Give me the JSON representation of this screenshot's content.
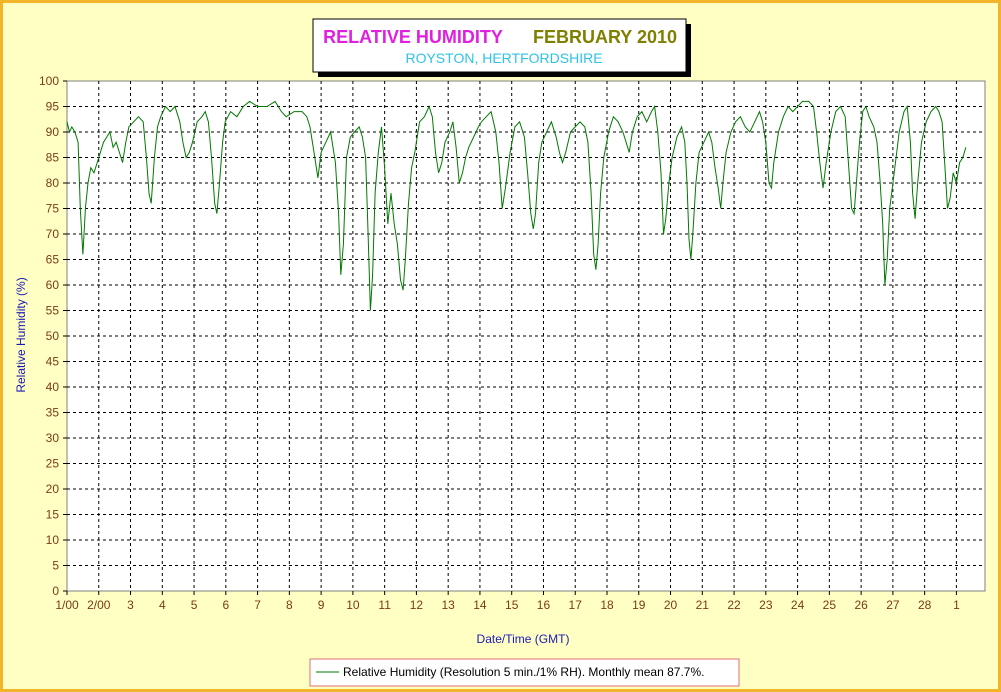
{
  "chart_data": {
    "type": "line",
    "title": "RELATIVE HUMIDITY",
    "title_month": "FEBRUARY 2010",
    "subtitle": "ROYSTON, HERTFORDSHIRE",
    "xlabel": "Date/Time (GMT)",
    "ylabel": "Relative Humidity (%)",
    "ylim": [
      0,
      100
    ],
    "xlim": [
      1,
      29.9
    ],
    "y_ticks": [
      0,
      5,
      10,
      15,
      20,
      25,
      30,
      35,
      40,
      45,
      50,
      55,
      60,
      65,
      70,
      75,
      80,
      85,
      90,
      95,
      100
    ],
    "x_ticks": [
      {
        "x": 1,
        "label": "1/00"
      },
      {
        "x": 2,
        "label": "2/00"
      },
      {
        "x": 3,
        "label": "3"
      },
      {
        "x": 4,
        "label": "4"
      },
      {
        "x": 5,
        "label": "5"
      },
      {
        "x": 6,
        "label": "6"
      },
      {
        "x": 7,
        "label": "7"
      },
      {
        "x": 8,
        "label": "8"
      },
      {
        "x": 9,
        "label": "9"
      },
      {
        "x": 10,
        "label": "10"
      },
      {
        "x": 11,
        "label": "11"
      },
      {
        "x": 12,
        "label": "12"
      },
      {
        "x": 13,
        "label": "13"
      },
      {
        "x": 14,
        "label": "14"
      },
      {
        "x": 15,
        "label": "15"
      },
      {
        "x": 16,
        "label": "16"
      },
      {
        "x": 17,
        "label": "17"
      },
      {
        "x": 18,
        "label": "18"
      },
      {
        "x": 19,
        "label": "19"
      },
      {
        "x": 20,
        "label": "20"
      },
      {
        "x": 21,
        "label": "21"
      },
      {
        "x": 22,
        "label": "22"
      },
      {
        "x": 23,
        "label": "23"
      },
      {
        "x": 24,
        "label": "24"
      },
      {
        "x": 25,
        "label": "25"
      },
      {
        "x": 26,
        "label": "26"
      },
      {
        "x": 27,
        "label": "27"
      },
      {
        "x": 28,
        "label": "28"
      },
      {
        "x": 29,
        "label": "1"
      }
    ],
    "grid": true,
    "legend_position": "bottom-center",
    "series": [
      {
        "name": "Relative Humidity (Resolution 5 min./1% RH). Monthly mean 87.7%.",
        "color": "#007a00",
        "points": [
          [
            1.0,
            92
          ],
          [
            1.08,
            90
          ],
          [
            1.15,
            91
          ],
          [
            1.25,
            90
          ],
          [
            1.35,
            88
          ],
          [
            1.42,
            75
          ],
          [
            1.5,
            66
          ],
          [
            1.58,
            75
          ],
          [
            1.66,
            80
          ],
          [
            1.75,
            83
          ],
          [
            1.85,
            82
          ],
          [
            1.95,
            84
          ],
          [
            2.05,
            86
          ],
          [
            2.15,
            88
          ],
          [
            2.25,
            89
          ],
          [
            2.35,
            90
          ],
          [
            2.45,
            87
          ],
          [
            2.55,
            88
          ],
          [
            2.65,
            86
          ],
          [
            2.75,
            84
          ],
          [
            2.85,
            88
          ],
          [
            2.95,
            91
          ],
          [
            3.1,
            92
          ],
          [
            3.25,
            93
          ],
          [
            3.4,
            92
          ],
          [
            3.5,
            85
          ],
          [
            3.58,
            78
          ],
          [
            3.65,
            76
          ],
          [
            3.75,
            85
          ],
          [
            3.85,
            91
          ],
          [
            3.95,
            93
          ],
          [
            4.1,
            95
          ],
          [
            4.25,
            94
          ],
          [
            4.4,
            95
          ],
          [
            4.55,
            92
          ],
          [
            4.65,
            88
          ],
          [
            4.75,
            85
          ],
          [
            4.85,
            86
          ],
          [
            4.95,
            88
          ],
          [
            5.1,
            92
          ],
          [
            5.25,
            93
          ],
          [
            5.35,
            94
          ],
          [
            5.45,
            92
          ],
          [
            5.55,
            85
          ],
          [
            5.65,
            76
          ],
          [
            5.72,
            74
          ],
          [
            5.8,
            80
          ],
          [
            5.9,
            88
          ],
          [
            5.98,
            92
          ],
          [
            6.15,
            94
          ],
          [
            6.35,
            93
          ],
          [
            6.55,
            95
          ],
          [
            6.75,
            96
          ],
          [
            7.0,
            95
          ],
          [
            7.3,
            95
          ],
          [
            7.55,
            96
          ],
          [
            7.75,
            94
          ],
          [
            7.9,
            93
          ],
          [
            8.15,
            94
          ],
          [
            8.4,
            94
          ],
          [
            8.55,
            93
          ],
          [
            8.65,
            91
          ],
          [
            8.8,
            85
          ],
          [
            8.9,
            81
          ],
          [
            9.0,
            86
          ],
          [
            9.15,
            88
          ],
          [
            9.3,
            90
          ],
          [
            9.45,
            84
          ],
          [
            9.55,
            74
          ],
          [
            9.62,
            62
          ],
          [
            9.7,
            68
          ],
          [
            9.8,
            85
          ],
          [
            9.92,
            89
          ],
          [
            10.05,
            90
          ],
          [
            10.2,
            91
          ],
          [
            10.3,
            89
          ],
          [
            10.4,
            85
          ],
          [
            10.48,
            70
          ],
          [
            10.55,
            55
          ],
          [
            10.62,
            62
          ],
          [
            10.7,
            78
          ],
          [
            10.8,
            86
          ],
          [
            10.9,
            91
          ],
          [
            11.0,
            83
          ],
          [
            11.1,
            72
          ],
          [
            11.2,
            78
          ],
          [
            11.3,
            72
          ],
          [
            11.4,
            68
          ],
          [
            11.5,
            61
          ],
          [
            11.58,
            59
          ],
          [
            11.65,
            65
          ],
          [
            11.75,
            76
          ],
          [
            11.85,
            83
          ],
          [
            11.95,
            86
          ],
          [
            12.1,
            92
          ],
          [
            12.25,
            93
          ],
          [
            12.4,
            95
          ],
          [
            12.5,
            93
          ],
          [
            12.6,
            86
          ],
          [
            12.7,
            82
          ],
          [
            12.8,
            84
          ],
          [
            12.9,
            88
          ],
          [
            13.05,
            90
          ],
          [
            13.15,
            92
          ],
          [
            13.25,
            87
          ],
          [
            13.35,
            80
          ],
          [
            13.45,
            82
          ],
          [
            13.55,
            85
          ],
          [
            13.65,
            87
          ],
          [
            13.8,
            89
          ],
          [
            13.95,
            91
          ],
          [
            14.05,
            92
          ],
          [
            14.2,
            93
          ],
          [
            14.35,
            94
          ],
          [
            14.5,
            90
          ],
          [
            14.6,
            84
          ],
          [
            14.7,
            75
          ],
          [
            14.8,
            79
          ],
          [
            14.95,
            86
          ],
          [
            15.1,
            91
          ],
          [
            15.25,
            92
          ],
          [
            15.4,
            89
          ],
          [
            15.5,
            82
          ],
          [
            15.6,
            74
          ],
          [
            15.68,
            71
          ],
          [
            15.75,
            74
          ],
          [
            15.85,
            84
          ],
          [
            15.95,
            88
          ],
          [
            16.1,
            90
          ],
          [
            16.25,
            92
          ],
          [
            16.4,
            89
          ],
          [
            16.5,
            86
          ],
          [
            16.6,
            84
          ],
          [
            16.7,
            86
          ],
          [
            16.85,
            90
          ],
          [
            17.0,
            91
          ],
          [
            17.15,
            92
          ],
          [
            17.3,
            91
          ],
          [
            17.4,
            88
          ],
          [
            17.5,
            78
          ],
          [
            17.58,
            66
          ],
          [
            17.65,
            63
          ],
          [
            17.72,
            68
          ],
          [
            17.8,
            78
          ],
          [
            17.9,
            85
          ],
          [
            18.05,
            90
          ],
          [
            18.2,
            93
          ],
          [
            18.35,
            92
          ],
          [
            18.5,
            90
          ],
          [
            18.6,
            88
          ],
          [
            18.7,
            86
          ],
          [
            18.8,
            90
          ],
          [
            18.95,
            93
          ],
          [
            19.1,
            94
          ],
          [
            19.25,
            92
          ],
          [
            19.4,
            94
          ],
          [
            19.5,
            95
          ],
          [
            19.6,
            90
          ],
          [
            19.7,
            82
          ],
          [
            19.78,
            70
          ],
          [
            19.85,
            73
          ],
          [
            19.95,
            80
          ],
          [
            20.05,
            85
          ],
          [
            20.2,
            89
          ],
          [
            20.35,
            91
          ],
          [
            20.45,
            88
          ],
          [
            20.52,
            80
          ],
          [
            20.58,
            69
          ],
          [
            20.64,
            65
          ],
          [
            20.7,
            70
          ],
          [
            20.8,
            80
          ],
          [
            20.9,
            86
          ],
          [
            21.05,
            88
          ],
          [
            21.2,
            90
          ],
          [
            21.3,
            88
          ],
          [
            21.4,
            83
          ],
          [
            21.5,
            79
          ],
          [
            21.58,
            75
          ],
          [
            21.65,
            80
          ],
          [
            21.75,
            86
          ],
          [
            21.9,
            90
          ],
          [
            22.05,
            92
          ],
          [
            22.2,
            93
          ],
          [
            22.35,
            91
          ],
          [
            22.5,
            90
          ],
          [
            22.65,
            92
          ],
          [
            22.8,
            94
          ],
          [
            22.9,
            92
          ],
          [
            23.0,
            88
          ],
          [
            23.1,
            80
          ],
          [
            23.18,
            79
          ],
          [
            23.25,
            84
          ],
          [
            23.4,
            90
          ],
          [
            23.55,
            93
          ],
          [
            23.7,
            95
          ],
          [
            23.85,
            94
          ],
          [
            24.0,
            95
          ],
          [
            24.15,
            96
          ],
          [
            24.35,
            96
          ],
          [
            24.5,
            95
          ],
          [
            24.6,
            90
          ],
          [
            24.7,
            84
          ],
          [
            24.8,
            79
          ],
          [
            24.9,
            84
          ],
          [
            25.05,
            90
          ],
          [
            25.2,
            94
          ],
          [
            25.35,
            95
          ],
          [
            25.5,
            93
          ],
          [
            25.6,
            84
          ],
          [
            25.7,
            75
          ],
          [
            25.78,
            74
          ],
          [
            25.85,
            80
          ],
          [
            25.95,
            88
          ],
          [
            26.05,
            94
          ],
          [
            26.15,
            95
          ],
          [
            26.25,
            93
          ],
          [
            26.4,
            91
          ],
          [
            26.5,
            88
          ],
          [
            26.6,
            80
          ],
          [
            26.68,
            72
          ],
          [
            26.75,
            60
          ],
          [
            26.82,
            65
          ],
          [
            26.9,
            75
          ],
          [
            27.0,
            80
          ],
          [
            27.1,
            85
          ],
          [
            27.2,
            90
          ],
          [
            27.35,
            94
          ],
          [
            27.45,
            95
          ],
          [
            27.55,
            88
          ],
          [
            27.62,
            78
          ],
          [
            27.7,
            73
          ],
          [
            27.78,
            80
          ],
          [
            27.9,
            88
          ],
          [
            28.05,
            92
          ],
          [
            28.2,
            94
          ],
          [
            28.35,
            95
          ],
          [
            28.45,
            94
          ],
          [
            28.55,
            92
          ],
          [
            28.65,
            82
          ],
          [
            28.72,
            75
          ],
          [
            28.8,
            77
          ],
          [
            28.9,
            82
          ],
          [
            29.0,
            80
          ],
          [
            29.1,
            84
          ],
          [
            29.2,
            85
          ],
          [
            29.3,
            87
          ]
        ]
      }
    ]
  }
}
